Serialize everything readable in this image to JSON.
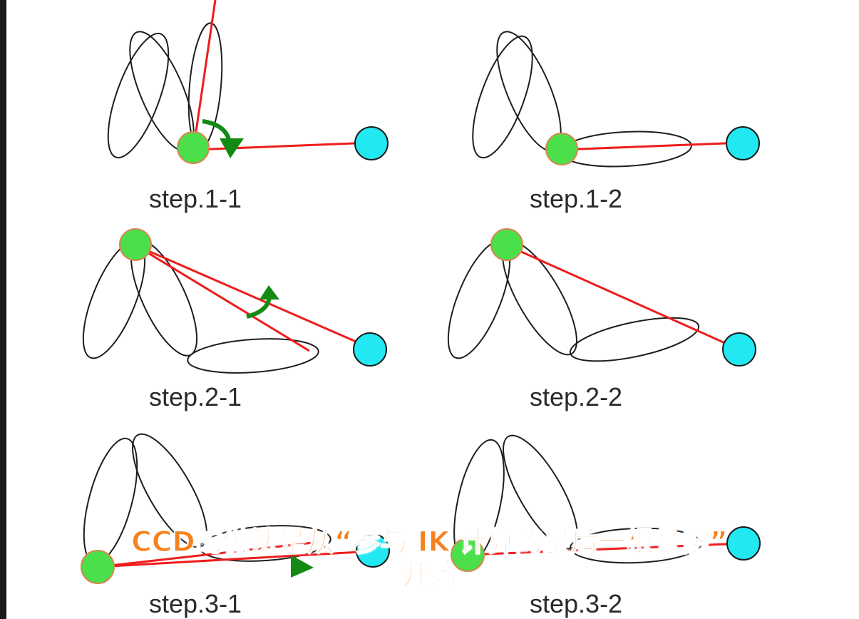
{
  "steps": [
    {
      "id": "step-1-1",
      "label": "step.1-1"
    },
    {
      "id": "step-1-2",
      "label": "step.1-2"
    },
    {
      "id": "step-2-1",
      "label": "step.2-1"
    },
    {
      "id": "step-2-2",
      "label": "step.2-2"
    },
    {
      "id": "step-3-1",
      "label": "step.3-1"
    },
    {
      "id": "step-3-2",
      "label": "step.3-2"
    }
  ],
  "subtitle": {
    "line1": "CCD的做法是从“参与 IK 计算的最后一根骨骼”",
    "line2": "开始"
  },
  "colors": {
    "bone_stroke": "#1e1e1e",
    "joint_fill": "#4be04b",
    "joint_stroke": "#d8844f",
    "target_fill": "#22e8f2",
    "target_stroke": "#1a1a1a",
    "line": "#ee1c1c",
    "arrow": "#138a13",
    "subtitle": "#f6811f"
  }
}
